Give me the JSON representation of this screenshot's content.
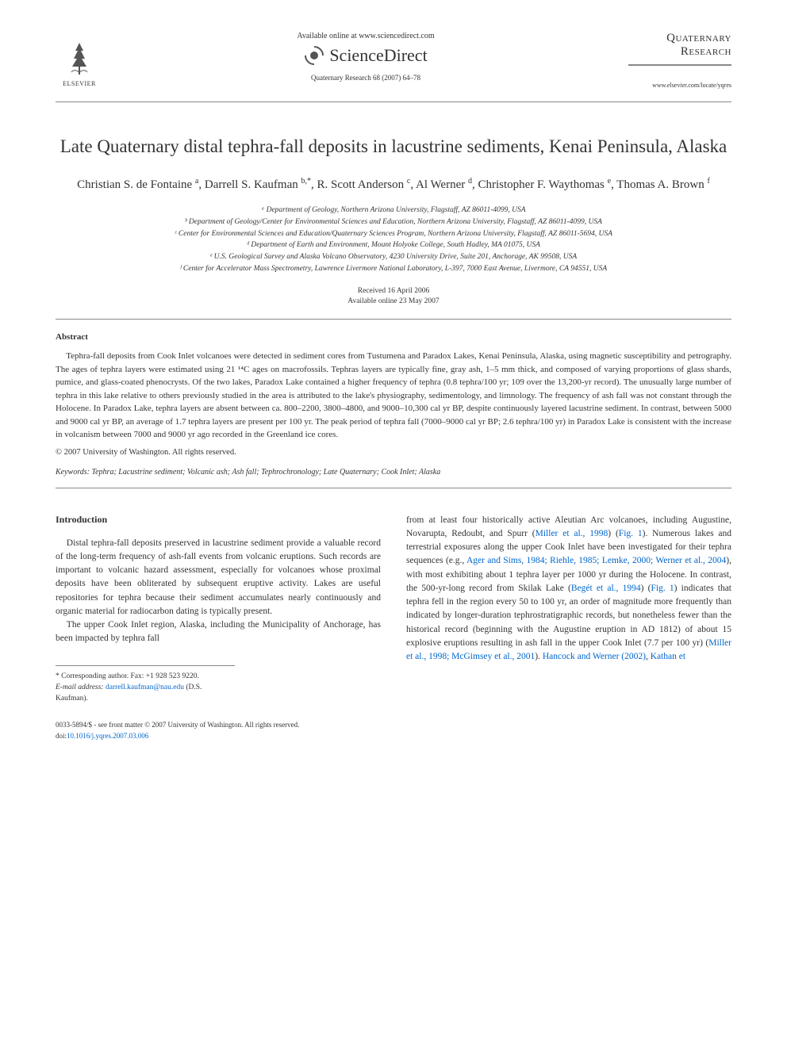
{
  "header": {
    "available_online": "Available online at www.sciencedirect.com",
    "sciencedirect": "ScienceDirect",
    "journal_ref": "Quaternary Research 68 (2007) 64–78",
    "elsevier_label": "ELSEVIER",
    "journal_name_1": "Quaternary",
    "journal_name_2": "Research",
    "journal_url": "www.elsevier.com/locate/yqres"
  },
  "article": {
    "title": "Late Quaternary distal tephra-fall deposits in lacustrine sediments, Kenai Peninsula, Alaska",
    "authors_html": "Christian S. de Fontaine <sup>a</sup>, Darrell S. Kaufman <sup>b,*</sup>, R. Scott Anderson <sup>c</sup>, Al Werner <sup>d</sup>, Christopher F. Waythomas <sup>e</sup>, Thomas A. Brown <sup>f</sup>",
    "affiliations": [
      "ᵃ Department of Geology, Northern Arizona University, Flagstaff, AZ 86011-4099, USA",
      "ᵇ Department of Geology/Center for Environmental Sciences and Education, Northern Arizona University, Flagstaff, AZ 86011-4099, USA",
      "ᶜ Center for Environmental Sciences and Education/Quaternary Sciences Program, Northern Arizona University, Flagstaff, AZ 86011-5694, USA",
      "ᵈ Department of Earth and Environment, Mount Holyoke College, South Hadley, MA 01075, USA",
      "ᵉ U.S. Geological Survey and Alaska Volcano Observatory, 4230 University Drive, Suite 201, Anchorage, AK 99508, USA",
      "ᶠ Center for Accelerator Mass Spectrometry, Lawrence Livermore National Laboratory, L-397, 7000 East Avenue, Livermore, CA 94551, USA"
    ],
    "received": "Received 16 April 2006",
    "available": "Available online 23 May 2007"
  },
  "abstract": {
    "heading": "Abstract",
    "body": "Tephra-fall deposits from Cook Inlet volcanoes were detected in sediment cores from Tustumena and Paradox Lakes, Kenai Peninsula, Alaska, using magnetic susceptibility and petrography. The ages of tephra layers were estimated using 21 ¹⁴C ages on macrofossils. Tephras layers are typically fine, gray ash, 1–5 mm thick, and composed of varying proportions of glass shards, pumice, and glass-coated phenocrysts. Of the two lakes, Paradox Lake contained a higher frequency of tephra (0.8 tephra/100 yr; 109 over the 13,200-yr record). The unusually large number of tephra in this lake relative to others previously studied in the area is attributed to the lake's physiography, sedimentology, and limnology. The frequency of ash fall was not constant through the Holocene. In Paradox Lake, tephra layers are absent between ca. 800–2200, 3800–4800, and 9000–10,300 cal yr BP, despite continuously layered lacustrine sediment. In contrast, between 5000 and 9000 cal yr BP, an average of 1.7 tephra layers are present per 100 yr. The peak period of tephra fall (7000–9000 cal yr BP; 2.6 tephra/100 yr) in Paradox Lake is consistent with the increase in volcanism between 7000 and 9000 yr ago recorded in the Greenland ice cores.",
    "copyright": "© 2007 University of Washington. All rights reserved.",
    "keywords_label": "Keywords:",
    "keywords": " Tephra; Lacustrine sediment; Volcanic ash; Ash fall; Tephrochronology; Late Quaternary; Cook Inlet; Alaska"
  },
  "intro": {
    "heading": "Introduction",
    "p1": "Distal tephra-fall deposits preserved in lacustrine sediment provide a valuable record of the long-term frequency of ash-fall events from volcanic eruptions. Such records are important to volcanic hazard assessment, especially for volcanoes whose proximal deposits have been obliterated by subsequent eruptive activity. Lakes are useful repositories for tephra because their sediment accumulates nearly continuously and organic material for radiocarbon dating is typically present.",
    "p2": "The upper Cook Inlet region, Alaska, including the Municipality of Anchorage, has been impacted by tephra fall",
    "p3a": "from at least four historically active Aleutian Arc volcanoes, including Augustine, Novarupta, Redoubt, and Spurr (",
    "p3_ref1": "Miller et al., 1998",
    "p3b": ") (",
    "p3_fig1": "Fig. 1",
    "p3c": "). Numerous lakes and terrestrial exposures along the upper Cook Inlet have been investigated for their tephra sequences (e.g., ",
    "p3_ref2": "Ager and Sims, 1984; Riehle, 1985; Lemke, 2000; Werner et al., 2004",
    "p3d": "), with most exhibiting about 1 tephra layer per 1000 yr during the Holocene. In contrast, the 500-yr-long record from Skilak Lake (",
    "p3_ref3": "Begét et al., 1994",
    "p3e": ") (",
    "p3_fig2": "Fig. 1",
    "p3f": ") indicates that tephra fell in the region every 50 to 100 yr, an order of magnitude more frequently than indicated by longer-duration tephrostratigraphic records, but nonetheless fewer than the historical record (beginning with the Augustine eruption in AD 1812) of about 15 explosive eruptions resulting in ash fall in the upper Cook Inlet (7.7 per 100 yr) (",
    "p3_ref4": "Miller et al., 1998; McGimsey et al., 2001",
    "p3g": "). ",
    "p3_ref5": "Hancock and Werner (2002)",
    "p3h": ", ",
    "p3_ref6": "Kathan et"
  },
  "corr": {
    "line1": "* Corresponding author. Fax: +1 928 523 9220.",
    "line2_label": "E-mail address:",
    "email": "darrell.kaufman@nau.edu",
    "line2_tail": " (D.S. Kaufman)."
  },
  "footer": {
    "line1": "0033-5894/$ - see front matter © 2007 University of Washington. All rights reserved.",
    "doi_label": "doi:",
    "doi": "10.1016/j.yqres.2007.03.006"
  },
  "colors": {
    "text": "#333333",
    "link": "#0066cc",
    "rule": "#888888",
    "background": "#ffffff"
  },
  "typography": {
    "title_fontsize_pt": 23,
    "author_fontsize_pt": 15,
    "affil_fontsize_pt": 9.5,
    "abstract_fontsize_pt": 11,
    "body_fontsize_pt": 11.5,
    "font_family": "Georgia / Times serif"
  }
}
